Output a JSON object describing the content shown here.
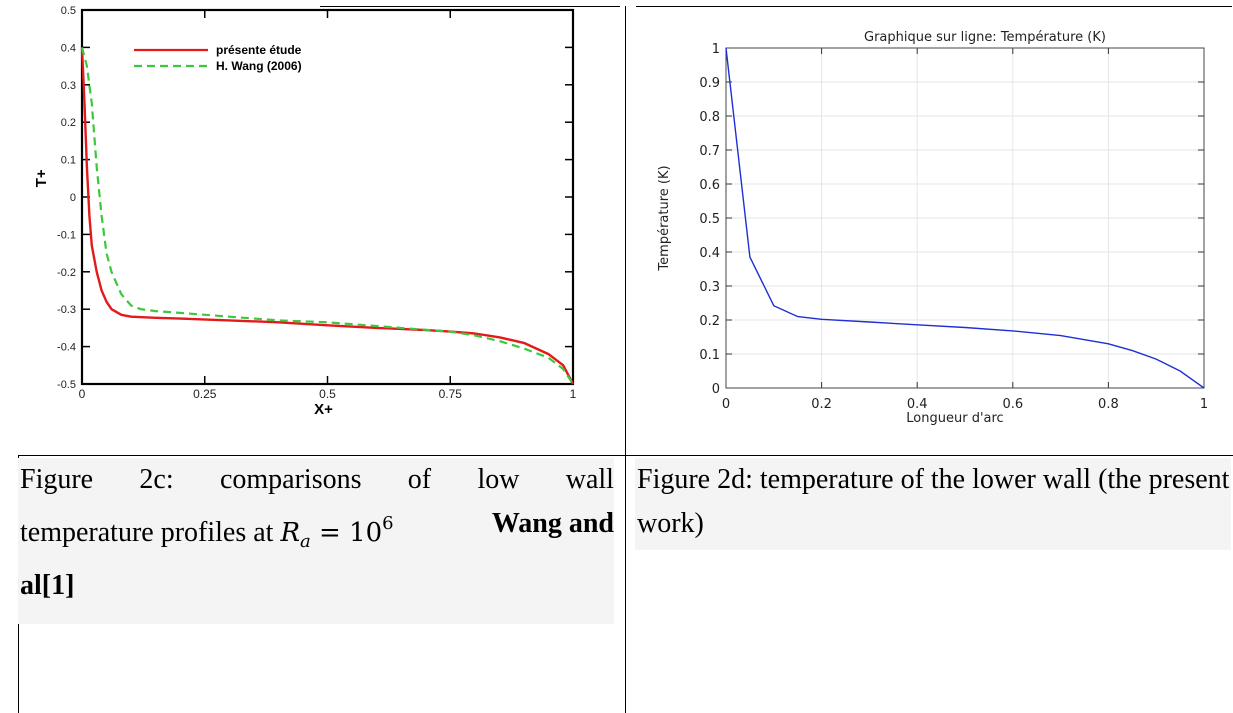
{
  "chart_data": [
    {
      "type": "line",
      "xlabel": "X+",
      "ylabel": "T+",
      "xlim": [
        0,
        1
      ],
      "ylim": [
        -0.5,
        0.5
      ],
      "xticks": [
        "0",
        "0.25",
        "0.5",
        "0.75",
        "1"
      ],
      "yticks": [
        "0.5",
        "0.4",
        "0.3",
        "0.2",
        "0.1",
        "0",
        "-0.1",
        "-0.2",
        "-0.3",
        "-0.4",
        "-0.5"
      ],
      "legend_position": "top-center",
      "series": [
        {
          "name": "présente étude",
          "color": "#e31a1c",
          "style": "solid",
          "x": [
            0.0,
            0.005,
            0.01,
            0.015,
            0.02,
            0.03,
            0.04,
            0.05,
            0.06,
            0.08,
            0.1,
            0.15,
            0.2,
            0.3,
            0.4,
            0.5,
            0.6,
            0.7,
            0.75,
            0.8,
            0.85,
            0.9,
            0.95,
            0.98,
            1.0
          ],
          "y": [
            0.4,
            0.25,
            0.08,
            -0.05,
            -0.13,
            -0.2,
            -0.25,
            -0.28,
            -0.3,
            -0.315,
            -0.32,
            -0.323,
            -0.325,
            -0.33,
            -0.335,
            -0.343,
            -0.35,
            -0.356,
            -0.36,
            -0.365,
            -0.375,
            -0.39,
            -0.42,
            -0.45,
            -0.5
          ]
        },
        {
          "name": "H. Wang (2006)",
          "color": "#3cc83c",
          "style": "dashed",
          "x": [
            0.0,
            0.01,
            0.02,
            0.03,
            0.04,
            0.05,
            0.06,
            0.08,
            0.1,
            0.12,
            0.15,
            0.2,
            0.3,
            0.4,
            0.5,
            0.6,
            0.7,
            0.75,
            0.8,
            0.85,
            0.9,
            0.95,
            0.98,
            1.0
          ],
          "y": [
            0.4,
            0.35,
            0.25,
            0.08,
            -0.05,
            -0.15,
            -0.2,
            -0.26,
            -0.29,
            -0.3,
            -0.305,
            -0.31,
            -0.32,
            -0.33,
            -0.335,
            -0.345,
            -0.355,
            -0.36,
            -0.37,
            -0.385,
            -0.405,
            -0.43,
            -0.46,
            -0.5
          ]
        }
      ]
    },
    {
      "type": "line",
      "title": "Graphique sur ligne: Température (K)",
      "xlabel": "Longueur d'arc",
      "ylabel": "Température (K)",
      "xlim": [
        0,
        1
      ],
      "ylim": [
        0,
        1
      ],
      "xticks": [
        "0",
        "0.2",
        "0.4",
        "0.6",
        "0.8",
        "1"
      ],
      "yticks": [
        "1",
        "0.9",
        "0.8",
        "0.7",
        "0.6",
        "0.5",
        "0.4",
        "0.3",
        "0.2",
        "0.1",
        "0"
      ],
      "grid": true,
      "series": [
        {
          "color": "#1f2fd6",
          "style": "solid",
          "x": [
            0.0,
            0.05,
            0.1,
            0.15,
            0.2,
            0.3,
            0.4,
            0.5,
            0.6,
            0.7,
            0.8,
            0.85,
            0.9,
            0.95,
            1.0
          ],
          "y": [
            1.0,
            0.385,
            0.242,
            0.21,
            0.202,
            0.194,
            0.186,
            0.178,
            0.168,
            0.154,
            0.13,
            0.11,
            0.085,
            0.05,
            0.0
          ]
        }
      ]
    }
  ],
  "captions": {
    "left": {
      "words_line1": [
        "Figure",
        "2c:",
        "comparisons",
        "of",
        "low",
        "wall"
      ],
      "line2_text": "temperature profiles at",
      "math_base": "R",
      "math_sub": "a",
      "math_eq": " = 10",
      "math_sup": "6",
      "bold_line2": "Wang and",
      "bold_line3": "al[1]"
    },
    "right": {
      "text": "Figure 2d: temperature of the lower wall (the present work)"
    }
  }
}
